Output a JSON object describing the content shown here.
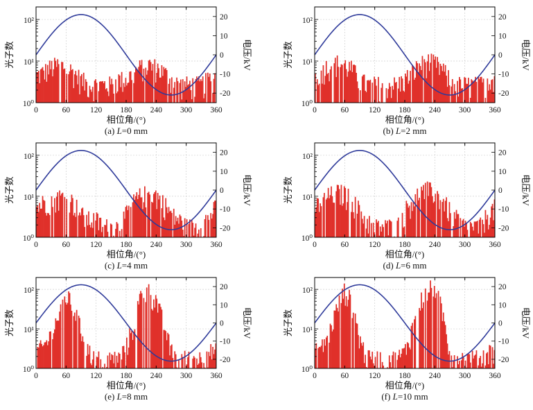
{
  "figure": {
    "xlabel": "相位角/(°)",
    "ylabel_left": "光子数",
    "ylabel_right": "电压/kV",
    "xticks": [
      "0",
      "60",
      "120",
      "180",
      "240",
      "300",
      "360"
    ],
    "yticks_left": [
      "10⁰",
      "10¹",
      "10²"
    ],
    "yticks_right": [
      "20",
      "10",
      "0",
      "-10",
      "-20"
    ],
    "colors": {
      "bars": "#e0302a",
      "curve": "#2e3a9a",
      "grid": "#cfcfcf",
      "axis": "#000000"
    }
  },
  "chart_data": [
    {
      "type": "bar",
      "caption_prefix": "(a) ",
      "caption_var": "L",
      "caption_suffix": "=0 mm",
      "x_range": [
        0,
        360
      ],
      "y_left": {
        "scale": "log",
        "range": [
          1,
          200
        ]
      },
      "y_right": {
        "range": [
          -25,
          25
        ]
      },
      "series": [
        {
          "name": "光子数",
          "axis": "left",
          "type": "bar",
          "x": [
            0,
            15,
            30,
            45,
            60,
            75,
            90,
            105,
            120,
            135,
            150,
            165,
            180,
            195,
            210,
            225,
            240,
            255,
            270,
            285,
            300,
            315,
            330,
            345,
            360
          ],
          "values": [
            5,
            6,
            8,
            9,
            8,
            6,
            4,
            3,
            3,
            3,
            3,
            4,
            4,
            6,
            8,
            9,
            8,
            6,
            4,
            3,
            3,
            3,
            3,
            4,
            5
          ]
        },
        {
          "name": "电压",
          "axis": "right",
          "type": "line",
          "amplitude_kV": 21,
          "phase_deg": 0
        }
      ]
    },
    {
      "type": "bar",
      "caption_prefix": "(b) ",
      "caption_var": "L",
      "caption_suffix": "=2 mm",
      "x_range": [
        0,
        360
      ],
      "y_left": {
        "scale": "log",
        "range": [
          1,
          200
        ]
      },
      "y_right": {
        "range": [
          -25,
          25
        ]
      },
      "series": [
        {
          "name": "光子数",
          "axis": "left",
          "type": "bar",
          "x": [
            0,
            15,
            30,
            45,
            60,
            75,
            90,
            105,
            120,
            135,
            150,
            165,
            180,
            195,
            210,
            225,
            240,
            255,
            270,
            285,
            300,
            315,
            330,
            345,
            360
          ],
          "values": [
            5,
            7,
            9,
            10,
            9,
            7,
            4,
            3,
            3,
            3,
            3,
            3,
            4,
            6,
            9,
            11,
            10,
            7,
            4,
            3,
            3,
            3,
            3,
            4,
            5
          ]
        },
        {
          "name": "电压",
          "axis": "right",
          "type": "line",
          "amplitude_kV": 21,
          "phase_deg": 0
        }
      ]
    },
    {
      "type": "bar",
      "caption_prefix": "(c) ",
      "caption_var": "L",
      "caption_suffix": "=4 mm",
      "x_range": [
        0,
        360
      ],
      "y_left": {
        "scale": "log",
        "range": [
          1,
          200
        ]
      },
      "y_right": {
        "range": [
          -25,
          25
        ]
      },
      "series": [
        {
          "name": "光子数",
          "axis": "left",
          "type": "bar",
          "x": [
            0,
            15,
            30,
            45,
            60,
            75,
            90,
            105,
            120,
            135,
            150,
            165,
            180,
            195,
            210,
            225,
            240,
            255,
            270,
            285,
            300,
            315,
            330,
            345,
            360
          ],
          "values": [
            6,
            8,
            10,
            11,
            10,
            8,
            4,
            3,
            3,
            2,
            2,
            2,
            4,
            8,
            12,
            13,
            12,
            8,
            4,
            3,
            2,
            2,
            2,
            4,
            6
          ]
        },
        {
          "name": "电压",
          "axis": "right",
          "type": "line",
          "amplitude_kV": 21,
          "phase_deg": 0
        }
      ]
    },
    {
      "type": "bar",
      "caption_prefix": "(d) ",
      "caption_var": "L",
      "caption_suffix": "=6 mm",
      "x_range": [
        0,
        360
      ],
      "y_left": {
        "scale": "log",
        "range": [
          1,
          200
        ]
      },
      "y_right": {
        "range": [
          -25,
          25
        ]
      },
      "series": [
        {
          "name": "光子数",
          "axis": "left",
          "type": "bar",
          "x": [
            0,
            15,
            30,
            45,
            60,
            75,
            90,
            105,
            120,
            135,
            150,
            165,
            180,
            195,
            210,
            225,
            240,
            255,
            270,
            285,
            300,
            315,
            330,
            345,
            360
          ],
          "values": [
            6,
            9,
            12,
            14,
            13,
            9,
            5,
            3,
            2,
            2,
            2,
            2,
            5,
            9,
            14,
            16,
            14,
            9,
            5,
            3,
            2,
            2,
            2,
            4,
            6
          ]
        },
        {
          "name": "电压",
          "axis": "right",
          "type": "line",
          "amplitude_kV": 21,
          "phase_deg": 0
        }
      ]
    },
    {
      "type": "bar",
      "caption_prefix": "(e) ",
      "caption_var": "L",
      "caption_suffix": "=8 mm",
      "x_range": [
        0,
        360
      ],
      "y_left": {
        "scale": "log",
        "range": [
          1,
          200
        ]
      },
      "y_right": {
        "range": [
          -25,
          25
        ]
      },
      "series": [
        {
          "name": "光子数",
          "axis": "left",
          "type": "bar",
          "x": [
            0,
            15,
            30,
            45,
            60,
            75,
            90,
            105,
            120,
            135,
            150,
            165,
            180,
            195,
            210,
            225,
            240,
            255,
            270,
            285,
            300,
            315,
            330,
            345,
            360
          ],
          "values": [
            3,
            4,
            8,
            25,
            80,
            40,
            10,
            3,
            2,
            2,
            2,
            2,
            4,
            15,
            90,
            100,
            60,
            15,
            3,
            2,
            2,
            2,
            2,
            3,
            3
          ]
        },
        {
          "name": "电压",
          "axis": "right",
          "type": "line",
          "amplitude_kV": 21,
          "phase_deg": 0
        }
      ]
    },
    {
      "type": "bar",
      "caption_prefix": "(f) ",
      "caption_var": "L",
      "caption_suffix": "=10 mm",
      "x_range": [
        0,
        360
      ],
      "y_left": {
        "scale": "log",
        "range": [
          1,
          200
        ]
      },
      "y_right": {
        "range": [
          -25,
          25
        ]
      },
      "series": [
        {
          "name": "光子数",
          "axis": "left",
          "type": "bar",
          "x": [
            0,
            15,
            30,
            45,
            60,
            75,
            90,
            105,
            120,
            135,
            150,
            165,
            180,
            195,
            210,
            225,
            240,
            255,
            270,
            285,
            300,
            315,
            330,
            345,
            360
          ],
          "values": [
            3,
            4,
            10,
            40,
            110,
            50,
            6,
            2,
            2,
            2,
            2,
            2,
            3,
            12,
            60,
            100,
            150,
            30,
            3,
            2,
            2,
            2,
            2,
            3,
            3
          ]
        },
        {
          "name": "电压",
          "axis": "right",
          "type": "line",
          "amplitude_kV": 21,
          "phase_deg": 0
        }
      ]
    }
  ]
}
